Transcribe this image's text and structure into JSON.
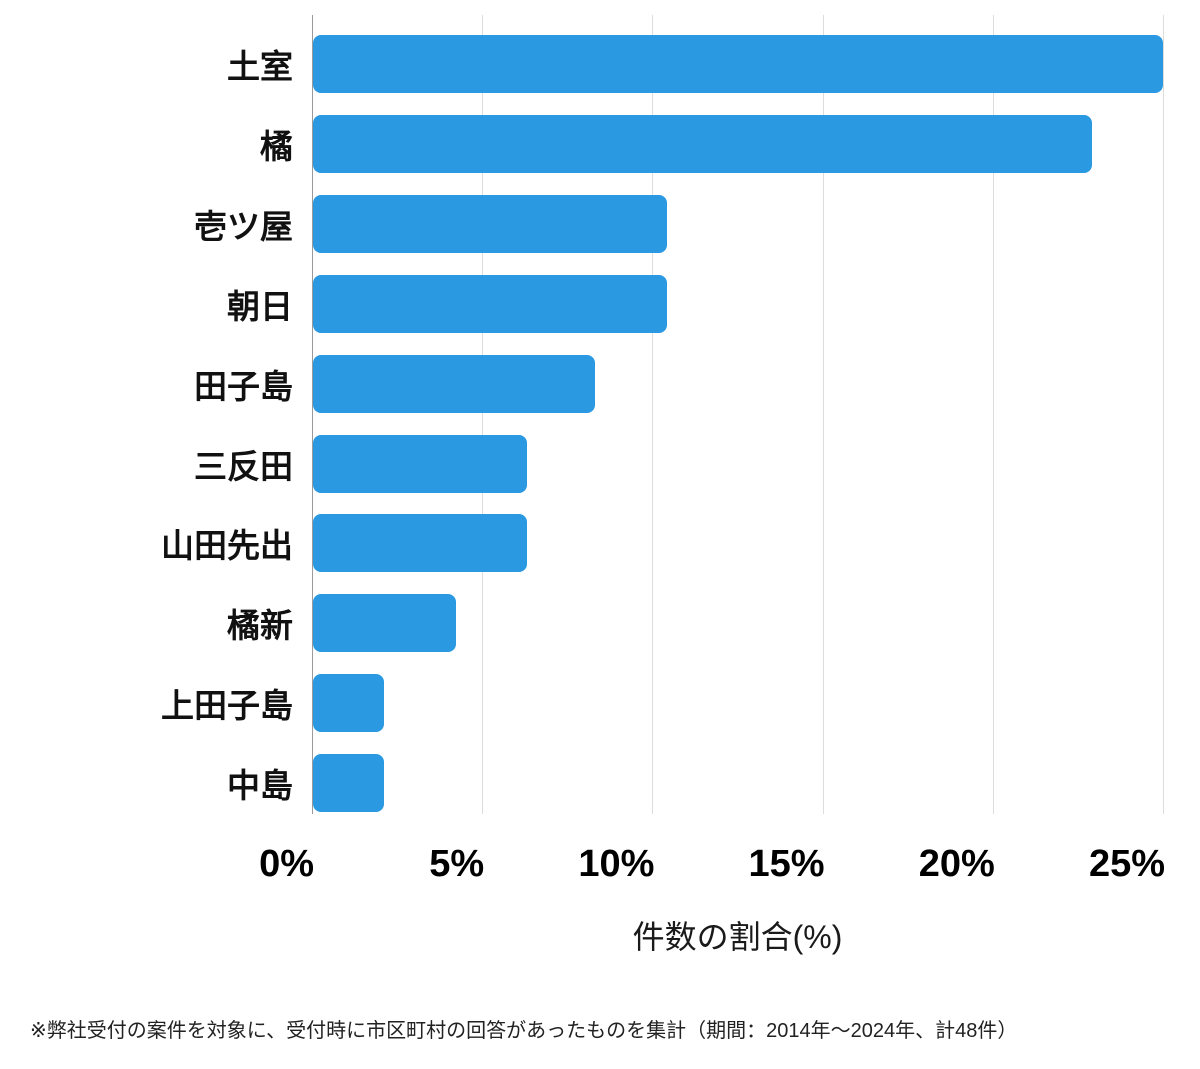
{
  "chart_data": {
    "type": "bar",
    "orientation": "horizontal",
    "title": "",
    "categories": [
      "土室",
      "橘",
      "壱ツ屋",
      "朝日",
      "田子島",
      "三反田",
      "山田先出",
      "橘新",
      "上田子島",
      "中島"
    ],
    "values": [
      25.0,
      22.9,
      10.4,
      10.4,
      8.3,
      6.3,
      6.3,
      4.2,
      2.1,
      2.1
    ],
    "xlabel": "件数の割合(%)",
    "ylabel": "",
    "x_ticks": [
      "0%",
      "5%",
      "10%",
      "15%",
      "20%",
      "25%"
    ],
    "x_tick_values": [
      0,
      5,
      10,
      15,
      20,
      25
    ],
    "xlim": [
      0,
      25
    ],
    "grid": "vertical",
    "legend": "none",
    "bar_color": "#2b98e2",
    "gridline_color": "#dcdcdc",
    "axis_line_color": "#9a9a9a",
    "footnote": "※弊社受付の案件を対象に、受付時に市区町村の回答があったものを集計（期間：2014年～2024年、計48件）"
  }
}
